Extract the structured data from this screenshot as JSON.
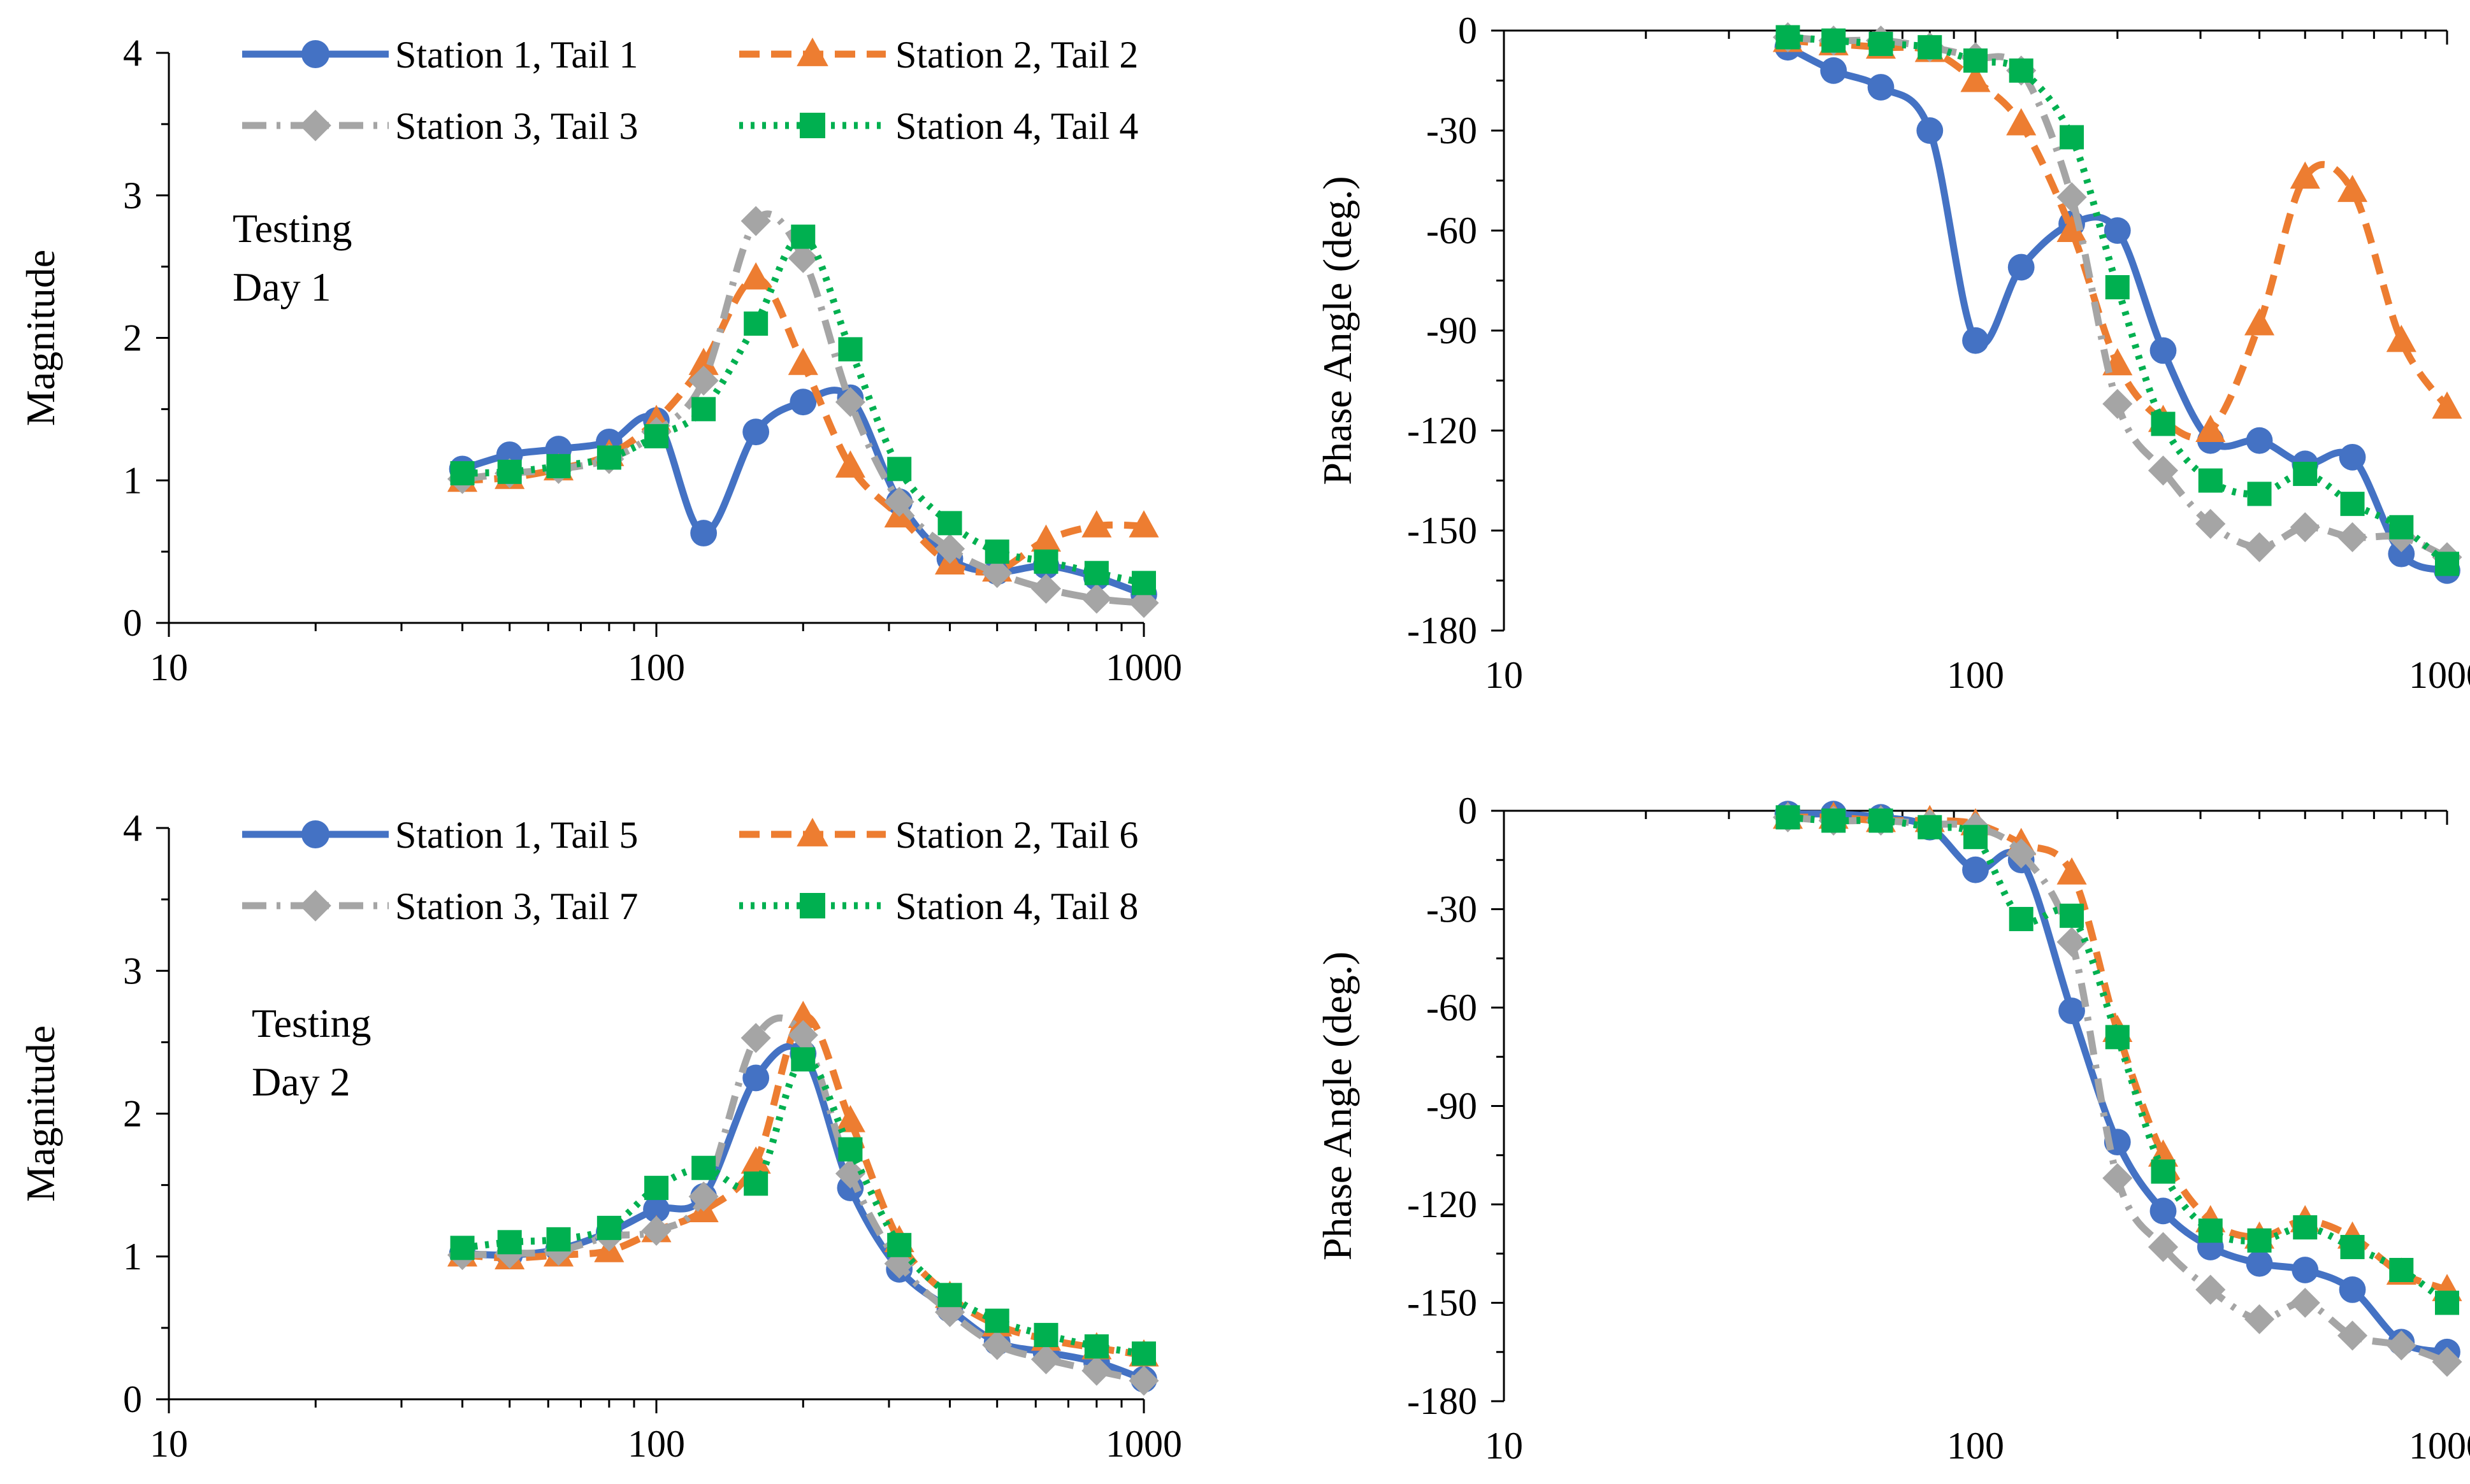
{
  "figure": {
    "colors": {
      "Station 1": "#4472C4",
      "Station 2": "#ED7D31",
      "Station 3": "#A5A5A5",
      "Station 4": "#00B050"
    }
  },
  "chart_data": [
    {
      "id": "mag-day1",
      "type": "line",
      "xscale": "log",
      "xlim": [
        10,
        1000
      ],
      "ylim": [
        0,
        4
      ],
      "xticks": [
        "10",
        "100",
        "1000"
      ],
      "yticks": [
        "0",
        "1",
        "2",
        "3",
        "4"
      ],
      "xlabel": "",
      "ylabel": "Magnitude",
      "annotation": [
        "Testing",
        "Day 1"
      ],
      "legend_position": "top",
      "x": [
        40,
        50,
        63,
        80,
        100,
        125,
        160,
        200,
        250,
        315,
        400,
        500,
        630,
        800,
        1000
      ],
      "series": [
        {
          "name": "Station 1, Tail 1",
          "station": "Station 1",
          "marker": "circle",
          "dash": "solid",
          "values": [
            1.08,
            1.18,
            1.22,
            1.27,
            1.42,
            0.63,
            1.34,
            1.55,
            1.58,
            0.85,
            0.45,
            0.36,
            0.4,
            0.32,
            0.2
          ]
        },
        {
          "name": "Station 2, Tail 2",
          "station": "Station 2",
          "marker": "triangle",
          "dash": "dash",
          "values": [
            1.0,
            1.02,
            1.08,
            1.18,
            1.42,
            1.82,
            2.42,
            1.82,
            1.1,
            0.75,
            0.42,
            0.37,
            0.58,
            0.68,
            0.68
          ]
        },
        {
          "name": "Station 3, Tail 3",
          "station": "Station 3",
          "marker": "diamond",
          "dash": "dashdot",
          "values": [
            1.01,
            1.05,
            1.08,
            1.15,
            1.34,
            1.7,
            2.82,
            2.56,
            1.55,
            0.85,
            0.52,
            0.35,
            0.24,
            0.17,
            0.14
          ]
        },
        {
          "name": "Station 4, Tail 4",
          "station": "Station 4",
          "marker": "square",
          "dash": "dot",
          "values": [
            1.05,
            1.06,
            1.1,
            1.16,
            1.31,
            1.5,
            2.1,
            2.71,
            1.92,
            1.08,
            0.7,
            0.5,
            0.43,
            0.35,
            0.28
          ]
        }
      ]
    },
    {
      "id": "phase-day1",
      "type": "line",
      "xscale": "log",
      "xlim": [
        10,
        1000
      ],
      "ylim": [
        -180,
        0
      ],
      "xticks": [
        "10",
        "100",
        "1000"
      ],
      "yticks": [
        "0",
        "-30",
        "-60",
        "-90",
        "-120",
        "-150",
        "-180"
      ],
      "xlabel": "",
      "ylabel": "Phase Angle  (deg.)",
      "x": [
        40,
        50,
        63,
        80,
        100,
        125,
        160,
        200,
        250,
        315,
        400,
        500,
        630,
        800,
        1000
      ],
      "series": [
        {
          "name": "Station 1, Tail 1",
          "station": "Station 1",
          "marker": "circle",
          "dash": "solid",
          "values": [
            -5,
            -12,
            -17,
            -30,
            -93,
            -71,
            -58,
            -60,
            -96,
            -123,
            -123,
            -130,
            -128,
            -157,
            -162
          ]
        },
        {
          "name": "Station 2, Tail 2",
          "station": "Station 2",
          "marker": "triangle",
          "dash": "dash",
          "values": [
            -3,
            -4,
            -5,
            -6,
            -15,
            -28,
            -60,
            -100,
            -117,
            -120,
            -88,
            -44,
            -48,
            -93,
            -113
          ]
        },
        {
          "name": "Station 3, Tail 3",
          "station": "Station 3",
          "marker": "diamond",
          "dash": "dashdot",
          "values": [
            -2,
            -3,
            -3,
            -5,
            -8,
            -12,
            -50,
            -112,
            -132,
            -148,
            -155,
            -149,
            -152,
            -152,
            -158
          ]
        },
        {
          "name": "Station 4, Tail 4",
          "station": "Station 4",
          "marker": "square",
          "dash": "dot",
          "values": [
            -2,
            -3,
            -4,
            -5,
            -9,
            -12,
            -32,
            -77,
            -118,
            -135,
            -139,
            -133,
            -142,
            -149,
            -160
          ]
        }
      ]
    },
    {
      "id": "mag-day2",
      "type": "line",
      "xscale": "log",
      "xlim": [
        10,
        1000
      ],
      "ylim": [
        0,
        4
      ],
      "xticks": [
        "10",
        "100",
        "1000"
      ],
      "yticks": [
        "0",
        "1",
        "2",
        "3",
        "4"
      ],
      "xlabel": "",
      "ylabel": "Magnitude",
      "annotation": [
        "Testing",
        "Day 2"
      ],
      "legend_position": "top",
      "x": [
        40,
        50,
        63,
        80,
        100,
        125,
        160,
        200,
        250,
        315,
        400,
        500,
        630,
        800,
        1000
      ],
      "series": [
        {
          "name": "Station 1, Tail 5",
          "station": "Station 1",
          "marker": "circle",
          "dash": "solid",
          "values": [
            1.02,
            1.01,
            1.05,
            1.17,
            1.33,
            1.42,
            2.25,
            2.42,
            1.48,
            0.91,
            0.63,
            0.4,
            0.33,
            0.26,
            0.14
          ]
        },
        {
          "name": "Station 2, Tail 6",
          "station": "Station 2",
          "marker": "triangle",
          "dash": "dash",
          "values": [
            1.01,
            0.99,
            1.01,
            1.04,
            1.18,
            1.32,
            1.66,
            2.68,
            1.95,
            1.11,
            0.72,
            0.52,
            0.42,
            0.36,
            0.31
          ]
        },
        {
          "name": "Station 3, Tail 7",
          "station": "Station 3",
          "marker": "diamond",
          "dash": "dashdot",
          "values": [
            1.01,
            1.02,
            1.04,
            1.14,
            1.18,
            1.42,
            2.53,
            2.55,
            1.58,
            0.95,
            0.61,
            0.38,
            0.28,
            0.2,
            0.13
          ]
        },
        {
          "name": "Station 4, Tail 8",
          "station": "Station 4",
          "marker": "square",
          "dash": "dot",
          "values": [
            1.06,
            1.1,
            1.12,
            1.2,
            1.48,
            1.62,
            1.51,
            2.38,
            1.75,
            1.08,
            0.73,
            0.55,
            0.45,
            0.37,
            0.32
          ]
        }
      ]
    },
    {
      "id": "phase-day2",
      "type": "line",
      "xscale": "log",
      "xlim": [
        10,
        1000
      ],
      "ylim": [
        -180,
        0
      ],
      "xticks": [
        "10",
        "100",
        "1000"
      ],
      "yticks": [
        "0",
        "-30",
        "-60",
        "-90",
        "-120",
        "-150",
        "-180"
      ],
      "xlabel": "",
      "ylabel": "Phase Angle  (deg.)",
      "x": [
        40,
        50,
        63,
        80,
        100,
        125,
        160,
        200,
        250,
        315,
        400,
        500,
        630,
        800,
        1000
      ],
      "series": [
        {
          "name": "Station 1, Tail 5",
          "station": "Station 1",
          "marker": "circle",
          "dash": "solid",
          "values": [
            -1,
            -1,
            -2,
            -5,
            -18,
            -15,
            -61,
            -101,
            -122,
            -133,
            -138,
            -140,
            -146,
            -162,
            -165
          ]
        },
        {
          "name": "Station 2, Tail 6",
          "station": "Station 2",
          "marker": "triangle",
          "dash": "dash",
          "values": [
            -2,
            -2,
            -3,
            -3,
            -4,
            -10,
            -19,
            -67,
            -105,
            -125,
            -130,
            -125,
            -130,
            -141,
            -146
          ]
        },
        {
          "name": "Station 3, Tail 7",
          "station": "Station 3",
          "marker": "diamond",
          "dash": "dashdot",
          "values": [
            -2,
            -3,
            -3,
            -4,
            -5,
            -13,
            -40,
            -112,
            -133,
            -146,
            -155,
            -150,
            -160,
            -163,
            -168
          ]
        },
        {
          "name": "Station 4, Tail 8",
          "station": "Station 4",
          "marker": "square",
          "dash": "dot",
          "values": [
            -2,
            -3,
            -3,
            -5,
            -8,
            -33,
            -32,
            -69,
            -110,
            -128,
            -131,
            -127,
            -133,
            -140,
            -150
          ]
        }
      ]
    }
  ]
}
